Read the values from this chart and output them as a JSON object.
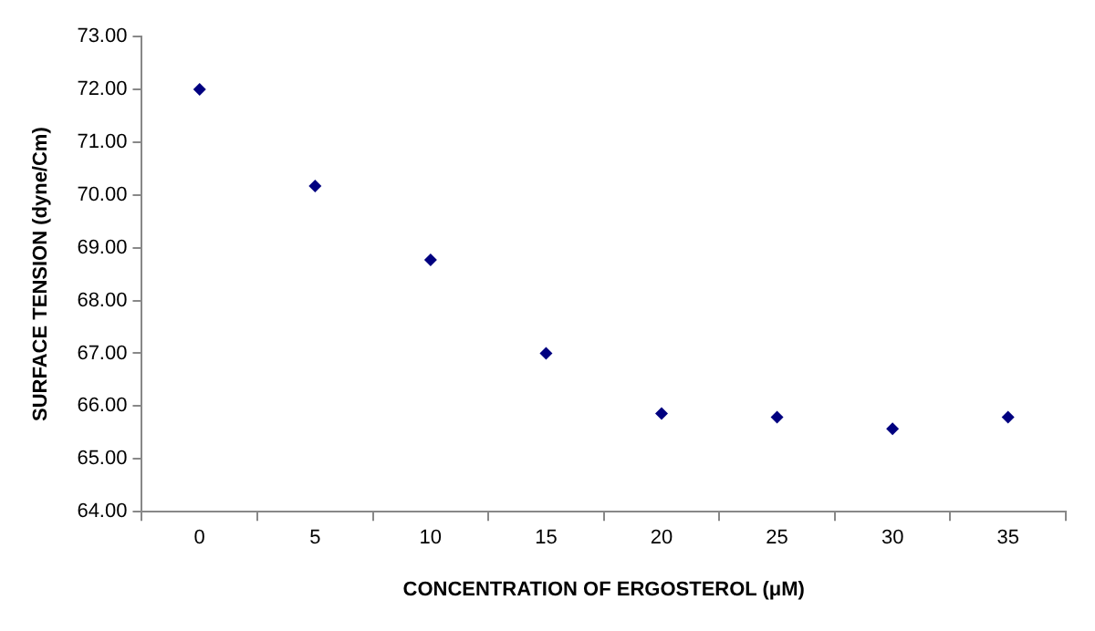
{
  "chart_data": {
    "type": "scatter",
    "xlabel": "CONCENTRATION OF ERGOSTEROL (μM)",
    "ylabel": "SURFACE TENSION (dyne/Cm)",
    "categories": [
      "0",
      "5",
      "10",
      "15",
      "20",
      "25",
      "30",
      "35"
    ],
    "series": [
      {
        "color": "#000080",
        "values": [
          72.0,
          70.17,
          68.77,
          67.0,
          65.86,
          65.79,
          65.57,
          65.79
        ]
      }
    ],
    "ylim": [
      64,
      73
    ],
    "yticks": [
      {
        "value": 64,
        "label": "64.00"
      },
      {
        "value": 65,
        "label": "65.00"
      },
      {
        "value": 66,
        "label": "66.00"
      },
      {
        "value": 67,
        "label": "67.00"
      },
      {
        "value": 68,
        "label": "68.00"
      },
      {
        "value": 69,
        "label": "69.00"
      },
      {
        "value": 70,
        "label": "70.00"
      },
      {
        "value": 71,
        "label": "71.00"
      },
      {
        "value": 72,
        "label": "72.00"
      },
      {
        "value": 73,
        "label": "73.00"
      }
    ],
    "marker": "diamond",
    "grid": false,
    "legend": false
  }
}
